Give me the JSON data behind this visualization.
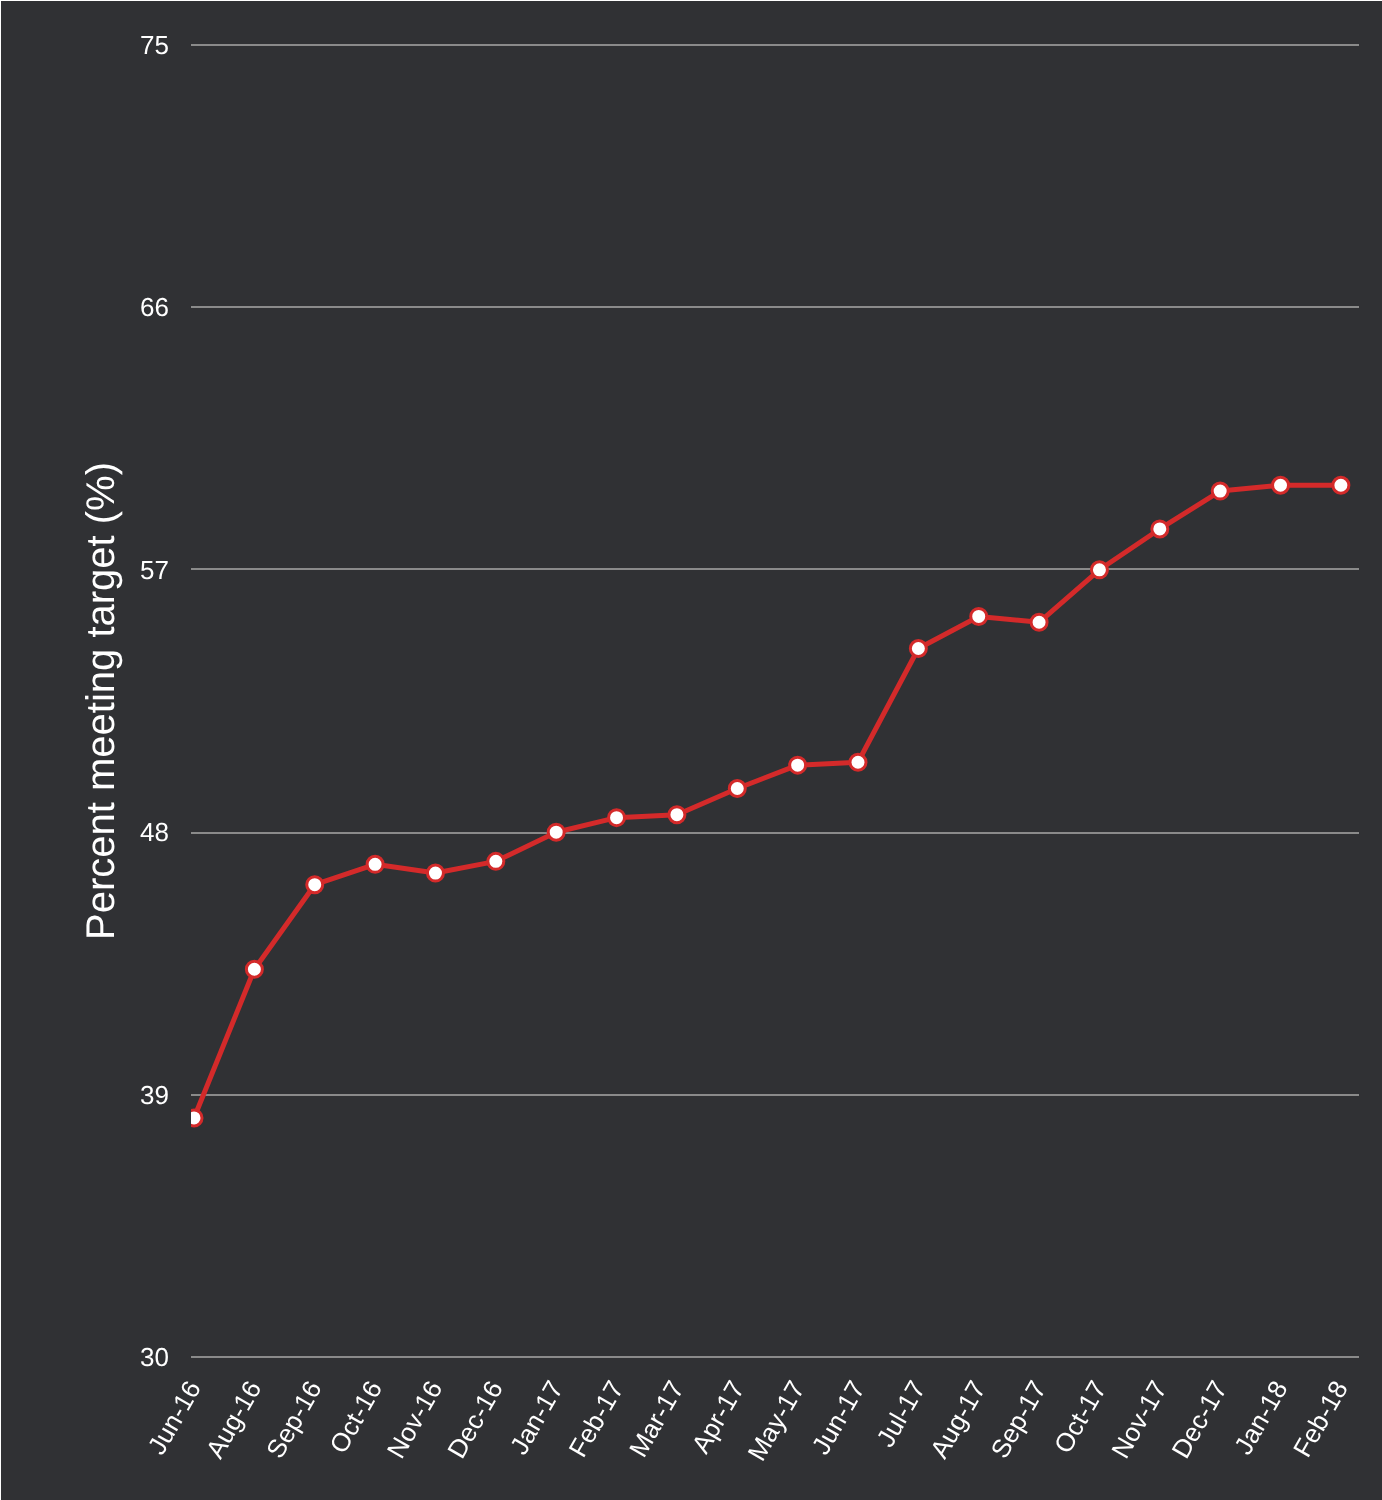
{
  "chart_data": {
    "type": "line",
    "ylabel": "Percent meeting target (%)",
    "categories": [
      "Jun-16",
      "Aug-16",
      "Sep-16",
      "Oct-16",
      "Nov-16",
      "Dec-16",
      "Jan-17",
      "Feb-17",
      "Mar-17",
      "Apr-17",
      "May-17",
      "Jun-17",
      "Jul-17",
      "Aug-17",
      "Sep-17",
      "Oct-17",
      "Nov-17",
      "Dec-17",
      "Jan-18",
      "Feb-18"
    ],
    "series": [
      {
        "color": "#d42a2a",
        "values": [
          38.2,
          43.3,
          46.2,
          46.9,
          46.6,
          47.0,
          48.0,
          48.5,
          48.6,
          49.5,
          50.3,
          50.4,
          54.3,
          55.4,
          55.2,
          57.0,
          58.4,
          59.7,
          59.9,
          59.9
        ]
      }
    ],
    "ylim": [
      30,
      75
    ],
    "yticks": [
      30,
      39,
      48,
      57,
      66,
      75
    ],
    "grid": "y",
    "marker": "circle",
    "line_style": "solid"
  }
}
